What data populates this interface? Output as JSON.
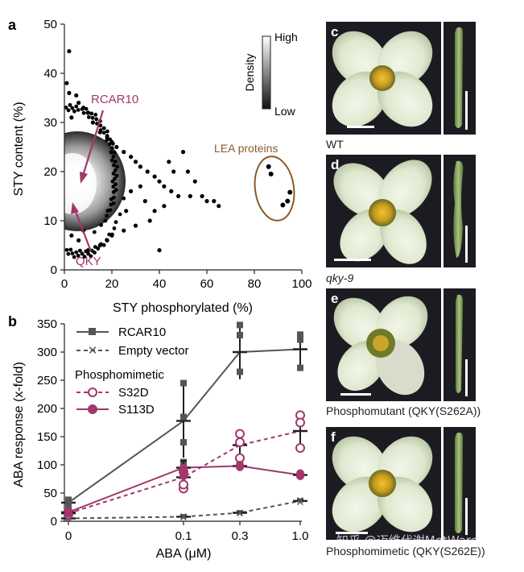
{
  "panel_labels": {
    "a": "a",
    "b": "b",
    "c": "c",
    "d": "d",
    "e": "e",
    "f": "f"
  },
  "chart_data": [
    {
      "type": "scatter",
      "xlabel": "STY phosphorylated (%)",
      "ylabel": "STY content (%)",
      "xlim": [
        0,
        100
      ],
      "ylim": [
        0,
        50
      ],
      "xticks": [
        "0",
        "20",
        "40",
        "60",
        "80",
        "100"
      ],
      "yticks": [
        "0",
        "10",
        "20",
        "30",
        "40",
        "50"
      ],
      "density_legend": {
        "title": "Density",
        "high": "High",
        "low": "Low"
      },
      "annotations": {
        "rcar10": "RCAR10",
        "qky": "QKY",
        "lea": "LEA proteins"
      },
      "colors": {
        "annotation": "#a3366b",
        "lea": "#8a5a2b",
        "points": "#000000"
      },
      "highlighted_points": [
        {
          "label": "RCAR10",
          "x": 3,
          "y": 17
        },
        {
          "label": "QKY",
          "x": 3,
          "y": 13
        }
      ],
      "lea_points": [
        {
          "x": 86,
          "y": 21
        },
        {
          "x": 87,
          "y": 19.5
        },
        {
          "x": 92,
          "y": 13.2
        },
        {
          "x": 94,
          "y": 14
        },
        {
          "x": 95,
          "y": 15.8
        }
      ],
      "outlier_points": [
        {
          "x": 2,
          "y": 44.5
        },
        {
          "x": 1,
          "y": 38
        },
        {
          "x": 2,
          "y": 36
        },
        {
          "x": 5,
          "y": 35.5
        },
        {
          "x": 6,
          "y": 34
        },
        {
          "x": 8,
          "y": 33
        },
        {
          "x": 10,
          "y": 32
        },
        {
          "x": 3,
          "y": 31
        },
        {
          "x": 12,
          "y": 30
        },
        {
          "x": 15,
          "y": 28
        },
        {
          "x": 18,
          "y": 27
        },
        {
          "x": 20,
          "y": 26
        },
        {
          "x": 22,
          "y": 25
        },
        {
          "x": 25,
          "y": 24
        },
        {
          "x": 28,
          "y": 23
        },
        {
          "x": 30,
          "y": 22
        },
        {
          "x": 32,
          "y": 21
        },
        {
          "x": 35,
          "y": 20
        },
        {
          "x": 38,
          "y": 19
        },
        {
          "x": 40,
          "y": 18
        },
        {
          "x": 42,
          "y": 17
        },
        {
          "x": 45,
          "y": 16
        },
        {
          "x": 48,
          "y": 15
        },
        {
          "x": 44,
          "y": 22
        },
        {
          "x": 46,
          "y": 20
        },
        {
          "x": 50,
          "y": 24
        },
        {
          "x": 52,
          "y": 20
        },
        {
          "x": 55,
          "y": 18
        },
        {
          "x": 53,
          "y": 15
        },
        {
          "x": 58,
          "y": 15
        },
        {
          "x": 60,
          "y": 14
        },
        {
          "x": 63,
          "y": 14
        },
        {
          "x": 65,
          "y": 13
        },
        {
          "x": 40,
          "y": 4
        },
        {
          "x": 36,
          "y": 10
        },
        {
          "x": 30,
          "y": 9
        },
        {
          "x": 25,
          "y": 8
        },
        {
          "x": 20,
          "y": 7
        },
        {
          "x": 18,
          "y": 6
        },
        {
          "x": 15,
          "y": 5
        },
        {
          "x": 10,
          "y": 4
        },
        {
          "x": 6,
          "y": 6
        },
        {
          "x": 3,
          "y": 7
        },
        {
          "x": 8,
          "y": 8
        },
        {
          "x": 34,
          "y": 14
        },
        {
          "x": 38,
          "y": 12
        },
        {
          "x": 42,
          "y": 13
        },
        {
          "x": 26,
          "y": 12
        },
        {
          "x": 28,
          "y": 16
        },
        {
          "x": 32,
          "y": 17
        }
      ]
    },
    {
      "type": "line",
      "xlabel": "ABA (μM)",
      "ylabel": "ABA response (x-fold)",
      "categories": [
        "0",
        "0.1",
        "0.3",
        "1.0"
      ],
      "ylim": [
        0,
        350
      ],
      "yticks": [
        "0",
        "50",
        "100",
        "150",
        "200",
        "250",
        "300",
        "350"
      ],
      "legend": {
        "rcar10": "RCAR10",
        "empty": "Empty vector",
        "section": "Phosphomimetic",
        "s32d": "S32D",
        "s113d": "S113D"
      },
      "colors": {
        "gray": "#555555",
        "magenta": "#a3366b"
      },
      "series": [
        {
          "name": "RCAR10",
          "values": [
            33,
            178,
            300,
            305
          ],
          "errors": [
            8,
            65,
            48,
            30
          ],
          "replicates": [
            [
              28,
              38
            ],
            [
              245,
              185,
              140,
              105
            ],
            [
              348,
              330,
              265
            ],
            [
              330,
              322,
              272
            ]
          ]
        },
        {
          "name": "Empty vector",
          "values": [
            5,
            8,
            15,
            36
          ],
          "errors": [
            2,
            3,
            3,
            3
          ],
          "replicates": [
            [
              4,
              6
            ],
            [
              7,
              9
            ],
            [
              14,
              16
            ],
            [
              34,
              38
            ]
          ]
        },
        {
          "name": "S32D",
          "values": [
            14,
            78,
            135,
            160
          ],
          "errors": [
            5,
            20,
            20,
            28
          ],
          "replicates": [
            [
              12,
              16
            ],
            [
              58,
              65,
              88
            ],
            [
              155,
              140,
              112
            ],
            [
              188,
              175,
              130
            ]
          ]
        },
        {
          "name": "S113D",
          "values": [
            16,
            95,
            98,
            82
          ],
          "errors": [
            4,
            12,
            6,
            6
          ],
          "replicates": [
            [
              14,
              18
            ],
            [
              95,
              90,
              80
            ],
            [
              100,
              96
            ],
            [
              85,
              80
            ]
          ]
        }
      ]
    }
  ],
  "photos": [
    {
      "caption": "WT",
      "italic": false
    },
    {
      "caption": "qky-9",
      "italic": true
    },
    {
      "caption": "Phosphomutant (QKY(S262A))",
      "italic": false
    },
    {
      "caption": "Phosphomimetic (QKY(S262E))",
      "italic": false
    }
  ],
  "watermark": "知乎 @迈维代谢MetWare"
}
